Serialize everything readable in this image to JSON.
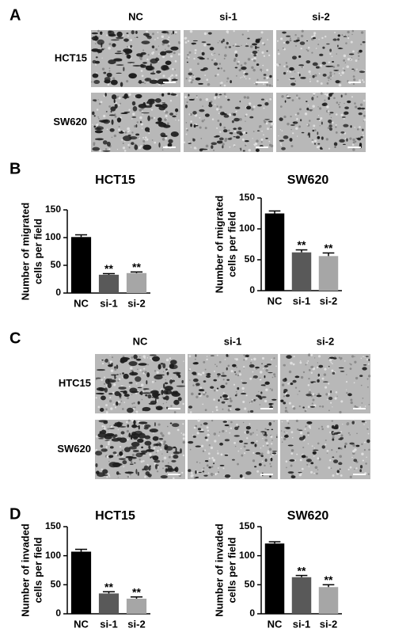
{
  "panels": [
    {
      "label": "A",
      "columns": [
        "NC",
        "si-1",
        "si-2"
      ],
      "rows": [
        "HCT15",
        "SW620"
      ]
    },
    {
      "label": "B"
    },
    {
      "label": "C",
      "columns": [
        "NC",
        "si-1",
        "si-2"
      ],
      "rows": [
        "HTC15",
        "SW620"
      ]
    },
    {
      "label": "D"
    }
  ],
  "chart_data": [
    {
      "type": "bar",
      "title": "HCT15",
      "ylabel": [
        "Number of migrated",
        "cells per field"
      ],
      "categories": [
        "NC",
        "si-1",
        "si-2"
      ],
      "values": [
        101,
        33,
        36
      ],
      "errors": [
        4,
        2,
        2
      ],
      "significance": [
        null,
        "**",
        "**"
      ],
      "colors": [
        "#000000",
        "#595959",
        "#a6a6a6"
      ],
      "ylim": [
        0,
        150
      ],
      "yticks": [
        0,
        50,
        100,
        150
      ]
    },
    {
      "type": "bar",
      "title": "SW620",
      "ylabel": [
        "Number of migrated",
        "cells per field"
      ],
      "categories": [
        "NC",
        "si-1",
        "si-2"
      ],
      "values": [
        125,
        62,
        56
      ],
      "errors": [
        4,
        4,
        5
      ],
      "significance": [
        null,
        "**",
        "**"
      ],
      "colors": [
        "#000000",
        "#595959",
        "#a6a6a6"
      ],
      "ylim": [
        0,
        150
      ],
      "yticks": [
        0,
        50,
        100,
        150
      ]
    },
    {
      "type": "bar",
      "title": "HCT15",
      "ylabel": [
        "Number of invaded",
        "cells per field"
      ],
      "categories": [
        "NC",
        "si-1",
        "si-2"
      ],
      "values": [
        107,
        35,
        26
      ],
      "errors": [
        4,
        3,
        3
      ],
      "significance": [
        null,
        "**",
        "**"
      ],
      "colors": [
        "#000000",
        "#595959",
        "#a6a6a6"
      ],
      "ylim": [
        0,
        150
      ],
      "yticks": [
        0,
        50,
        100,
        150
      ]
    },
    {
      "type": "bar",
      "title": "SW620",
      "ylabel": [
        "Number of invaded",
        "cells per field"
      ],
      "categories": [
        "NC",
        "si-1",
        "si-2"
      ],
      "values": [
        121,
        63,
        46
      ],
      "errors": [
        3,
        3,
        4
      ],
      "significance": [
        null,
        "**",
        "**"
      ],
      "colors": [
        "#000000",
        "#595959",
        "#a6a6a6"
      ],
      "ylim": [
        0,
        150
      ],
      "yticks": [
        0,
        50,
        100,
        150
      ]
    }
  ]
}
